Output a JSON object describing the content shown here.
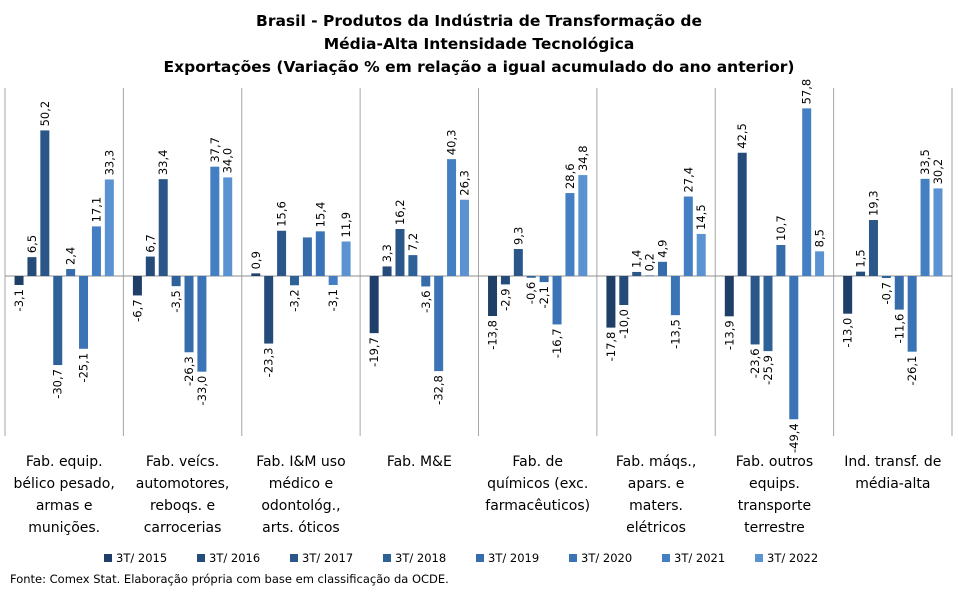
{
  "chart_data": {
    "type": "bar",
    "title_lines": [
      "Brasil - Produtos da Indústria de Transformação de",
      "Média-Alta Intensidade Tecnológica",
      "Exportações (Variação % em relação a igual acumulado do ano anterior)"
    ],
    "categories": [
      [
        "Fab. equip.",
        "bélico pesado,",
        "armas e",
        "munições."
      ],
      [
        "Fab. veícs.",
        "automotores,",
        "reboqs. e",
        "carrocerias"
      ],
      [
        "Fab. I&M uso",
        "médico e",
        "odontológ.,",
        "arts. óticos"
      ],
      [
        "Fab. M&E"
      ],
      [
        "Fab. de",
        "químicos (exc.",
        "farmacêuticos)"
      ],
      [
        "Fab. máqs.,",
        "apars. e",
        "maters.",
        "elétricos"
      ],
      [
        "Fab. outros",
        "equips.",
        "transporte",
        "terrestre"
      ],
      [
        "Ind. transf. de",
        "média-alta"
      ]
    ],
    "series": [
      {
        "name": "3T/ 2015",
        "color": "#1f3f68",
        "values": [
          -3.1,
          -6.7,
          0.9,
          -19.7,
          -13.8,
          -17.8,
          -13.9,
          -13.0
        ],
        "labels": [
          "-3,1",
          "-6,7",
          "0,9",
          "-19,7",
          "-13,8",
          "-17,8",
          "-13,9",
          "-13,0"
        ]
      },
      {
        "name": "3T/ 2016",
        "color": "#244b7a",
        "values": [
          6.5,
          6.7,
          -23.3,
          3.3,
          -2.9,
          -10.0,
          42.5,
          1.5
        ],
        "labels": [
          "6,5",
          "6,7",
          "-23,3",
          "3,3",
          "-2,9",
          "-10,0",
          "42,5",
          "1,5"
        ]
      },
      {
        "name": "3T/ 2017",
        "color": "#2a5689",
        "values": [
          50.2,
          33.4,
          15.6,
          16.2,
          9.3,
          1.4,
          -23.6,
          19.3
        ],
        "labels": [
          "50,2",
          "33,4",
          "15,6",
          "16,2",
          "9,3",
          "1,4",
          "-23,6",
          "19,3"
        ]
      },
      {
        "name": "3T/ 2018",
        "color": "#2f6199",
        "values": [
          -30.7,
          -3.5,
          -3.2,
          7.2,
          -0.6,
          0.2,
          -25.9,
          -0.7
        ],
        "labels": [
          "-30,7",
          "-3,5",
          "-3,2",
          "7,2",
          "-0,6",
          "0,2",
          "-25,9",
          "-0,7"
        ]
      },
      {
        "name": "3T/ 2019",
        "color": "#356ca9",
        "values": [
          2.4,
          -26.3,
          13.3,
          -3.6,
          -2.1,
          4.9,
          10.7,
          -11.6
        ],
        "labels": [
          "2,4",
          "-26,3",
          "",
          "-3,6",
          "-2,1",
          "4,9",
          "10,7",
          "-11,6"
        ]
      },
      {
        "name": "3T/ 2020",
        "color": "#3a74b6",
        "values": [
          -25.1,
          -33.0,
          15.4,
          -32.8,
          -16.7,
          -13.5,
          -49.4,
          -26.1
        ],
        "labels": [
          "-25,1",
          "-33,0",
          "15,4",
          "-32,8",
          "-16,7",
          "-13,5",
          "-49,4",
          "-26,1"
        ]
      },
      {
        "name": "3T/ 2021",
        "color": "#437fc2",
        "values": [
          17.1,
          37.7,
          -3.1,
          40.3,
          28.6,
          27.4,
          57.8,
          33.5
        ],
        "labels": [
          "17,1",
          "37,7",
          "-3,1",
          "40,3",
          "28,6",
          "27,4",
          "57,8",
          "33,5"
        ]
      },
      {
        "name": "3T/ 2022",
        "color": "#5a92d2",
        "values": [
          33.3,
          34.0,
          11.9,
          26.3,
          34.8,
          14.5,
          8.5,
          30.2
        ],
        "labels": [
          "33,3",
          "34,0",
          "11,9",
          "26,3",
          "34,8",
          "14,5",
          "8,5",
          "30,2"
        ]
      }
    ],
    "ylim": [
      -56,
      62
    ],
    "grid": false,
    "legend_position": "bottom",
    "source": "Fonte: Comex Stat. Elaboração própria com base em classificação da OCDE."
  }
}
